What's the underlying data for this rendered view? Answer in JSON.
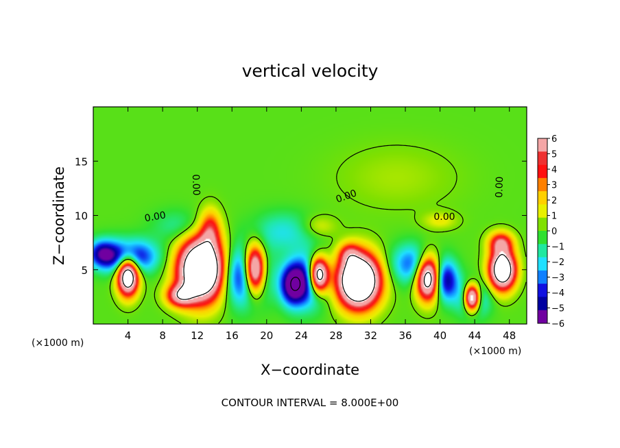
{
  "chart_data": {
    "type": "heatmap",
    "title": "vertical velocity",
    "xlabel": "X−coordinate",
    "ylabel": "Z−coordinate",
    "x_unit_label_left": "(×1000 m)",
    "x_unit_label_right": "(×1000 m)",
    "footer": "CONTOUR INTERVAL = 8.000E+00",
    "x_ticks": [
      "4",
      "8",
      "12",
      "16",
      "20",
      "24",
      "28",
      "32",
      "36",
      "40",
      "44",
      "48"
    ],
    "y_ticks": [
      "5",
      "10",
      "15"
    ],
    "xlim": [
      0,
      50
    ],
    "ylim": [
      0,
      20
    ],
    "colorbar": {
      "labels": [
        "6",
        "5",
        "4",
        "3",
        "2",
        "1",
        "0",
        "−1",
        "−2",
        "−3",
        "−4",
        "−5",
        "−6"
      ],
      "range": [
        -6,
        6
      ],
      "colors": [
        "#f4a6a6",
        "#ee3030",
        "#ff1010",
        "#ff8000",
        "#ffd000",
        "#e8f000",
        "#80e000",
        "#30e030",
        "#20e8a0",
        "#20e0ff",
        "#1080ff",
        "#1010e0",
        "#0000a0",
        "#7000a0"
      ]
    },
    "contour_labels": [
      "0.00",
      "0.00",
      "0.00",
      "0.00",
      "0.00"
    ],
    "cells": [
      {
        "x": 4.0,
        "z": 4.5,
        "sx": 1.2,
        "sz": 1.8,
        "w": 12
      },
      {
        "x": 4.0,
        "z": 6.2,
        "sx": 3.2,
        "sz": 1.5,
        "w": -6
      },
      {
        "x": 1.0,
        "z": 6.5,
        "sx": 1.5,
        "sz": 1.2,
        "w": -4
      },
      {
        "x": 12.5,
        "z": 5.0,
        "sx": 2.6,
        "sz": 2.8,
        "w": 15
      },
      {
        "x": 13.5,
        "z": 8.8,
        "sx": 1.2,
        "sz": 1.8,
        "w": 4
      },
      {
        "x": 10.0,
        "z": 2.6,
        "sx": 1.6,
        "sz": 1.0,
        "w": 6
      },
      {
        "x": 18.6,
        "z": 5.0,
        "sx": 1.2,
        "sz": 2.2,
        "w": 12
      },
      {
        "x": 17.5,
        "z": 4.5,
        "sx": 2.6,
        "sz": 2.6,
        "w": -6
      },
      {
        "x": 23.0,
        "z": 3.6,
        "sx": 1.4,
        "sz": 1.8,
        "w": -6
      },
      {
        "x": 26.0,
        "z": 4.5,
        "sx": 1.1,
        "sz": 1.6,
        "w": 12
      },
      {
        "x": 24.8,
        "z": 4.0,
        "sx": 2.2,
        "sz": 2.4,
        "w": -5
      },
      {
        "x": 30.6,
        "z": 4.0,
        "sx": 2.4,
        "sz": 2.4,
        "w": 15
      },
      {
        "x": 29.5,
        "z": 6.5,
        "sx": 1.2,
        "sz": 1.0,
        "w": 3
      },
      {
        "x": 37.0,
        "z": 5.5,
        "sx": 2.6,
        "sz": 1.8,
        "w": -4
      },
      {
        "x": 38.7,
        "z": 4.3,
        "sx": 1.4,
        "sz": 2.0,
        "w": 12
      },
      {
        "x": 40.5,
        "z": 4.0,
        "sx": 1.5,
        "sz": 1.8,
        "w": -6
      },
      {
        "x": 43.7,
        "z": 2.4,
        "sx": 0.9,
        "sz": 1.2,
        "w": 12
      },
      {
        "x": 43.8,
        "z": 2.3,
        "sx": 1.8,
        "sz": 1.6,
        "w": -4
      },
      {
        "x": 47.2,
        "z": 5.0,
        "sx": 1.5,
        "sz": 1.8,
        "w": 12
      },
      {
        "x": 47.0,
        "z": 7.5,
        "sx": 1.4,
        "sz": 1.0,
        "w": 5
      },
      {
        "x": 22.0,
        "z": 8.5,
        "sx": 3.5,
        "sz": 1.8,
        "w": -2
      },
      {
        "x": 10.0,
        "z": 9.0,
        "sx": 3.0,
        "sz": 1.5,
        "w": -1.5
      },
      {
        "x": 35.0,
        "z": 13.5,
        "sx": 7.0,
        "sz": 3.0,
        "w": 0.8
      },
      {
        "x": 26.0,
        "z": 9.0,
        "sx": 2.0,
        "sz": 1.0,
        "w": 1.5
      },
      {
        "x": 40.0,
        "z": 9.5,
        "sx": 2.0,
        "sz": 0.8,
        "w": 1.5
      }
    ]
  }
}
